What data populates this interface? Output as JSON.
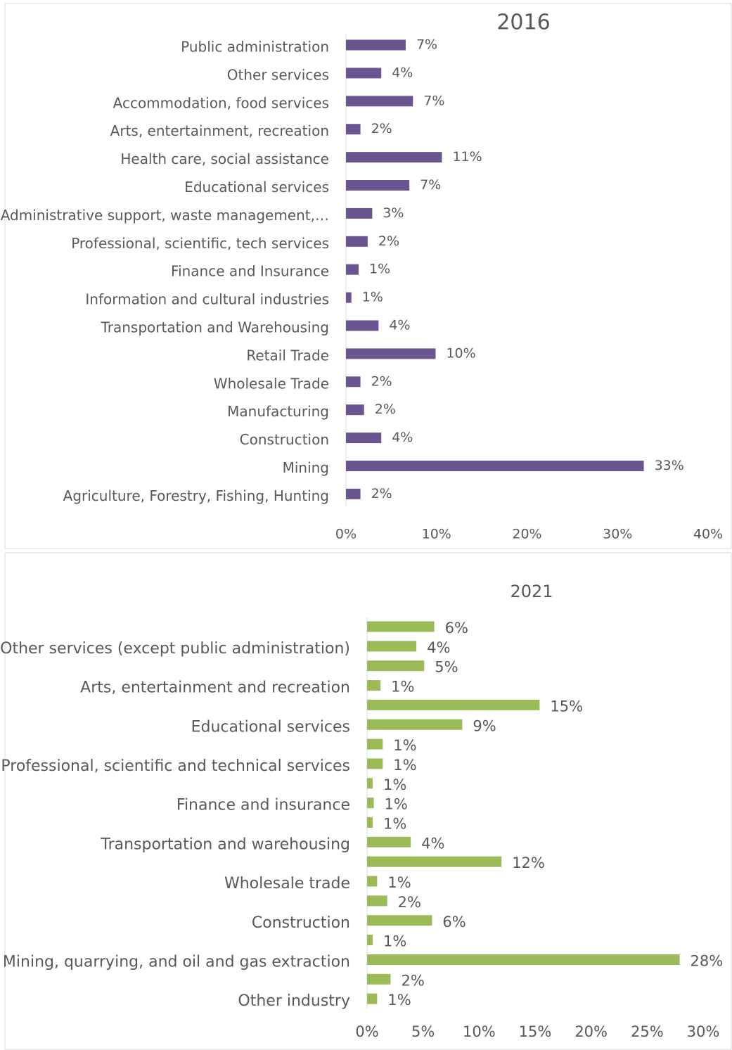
{
  "chart_data": [
    {
      "type": "bar",
      "title": "2016",
      "color": "#6a5591",
      "categories": [
        "Public administration",
        "Other services",
        "Accommodation, food services",
        "Arts, entertainment, recreation",
        "Health care, social assistance",
        "Educational services",
        "Administrative support, waste management,…",
        "Professional, scientific, tech services",
        "Finance and Insurance",
        "Information and cultural industries",
        "Transportation and Warehousing",
        "Retail Trade",
        "Wholesale Trade",
        "Manufacturing",
        "Construction",
        "Mining",
        "Agriculture, Forestry, Fishing,  Hunting"
      ],
      "values": [
        6.6,
        3.9,
        7.4,
        1.6,
        10.6,
        7.0,
        2.9,
        2.4,
        1.4,
        0.6,
        3.6,
        9.9,
        1.6,
        2.0,
        3.9,
        32.9,
        1.6
      ],
      "value_labels": [
        "7%",
        "4%",
        "7%",
        "2%",
        "11%",
        "7%",
        "3%",
        "2%",
        "1%",
        "1%",
        "4%",
        "10%",
        "2%",
        "2%",
        "4%",
        "33%",
        "2%"
      ],
      "xlim": [
        0,
        40
      ],
      "xticks": [
        {
          "value": 0,
          "label": "0%"
        },
        {
          "value": 10,
          "label": "10%"
        },
        {
          "value": 20,
          "label": "20%"
        },
        {
          "value": 30,
          "label": "30%"
        },
        {
          "value": 40,
          "label": "40%"
        }
      ]
    },
    {
      "type": "bar",
      "title": "2021",
      "color": "#9bbb59",
      "categories": [
        null,
        "Other services (except public administration)",
        null,
        "Arts, entertainment and recreation",
        null,
        "Educational services",
        null,
        "Professional, scientific and technical services",
        null,
        "Finance and insurance",
        null,
        "Transportation and warehousing",
        null,
        "Wholesale trade",
        null,
        "Construction",
        null,
        "Mining, quarrying, and oil and gas extraction",
        null,
        "Other industry"
      ],
      "values": [
        6.0,
        4.4,
        5.1,
        1.2,
        15.4,
        8.5,
        1.4,
        1.4,
        0.5,
        0.6,
        0.5,
        3.9,
        12.0,
        0.9,
        1.8,
        5.8,
        0.5,
        27.9,
        2.1,
        0.9
      ],
      "value_labels": [
        "6%",
        "4%",
        "5%",
        "1%",
        "15%",
        "9%",
        "1%",
        "1%",
        "1%",
        "1%",
        "1%",
        "4%",
        "12%",
        "1%",
        "2%",
        "6%",
        "1%",
        "28%",
        "2%",
        "1%"
      ],
      "xlim": [
        0,
        30
      ],
      "xticks": [
        {
          "value": 0,
          "label": "0%"
        },
        {
          "value": 5,
          "label": "5%"
        },
        {
          "value": 10,
          "label": "10%"
        },
        {
          "value": 15,
          "label": "15%"
        },
        {
          "value": 20,
          "label": "20%"
        },
        {
          "value": 25,
          "label": "25%"
        },
        {
          "value": 30,
          "label": "30%"
        }
      ]
    }
  ]
}
